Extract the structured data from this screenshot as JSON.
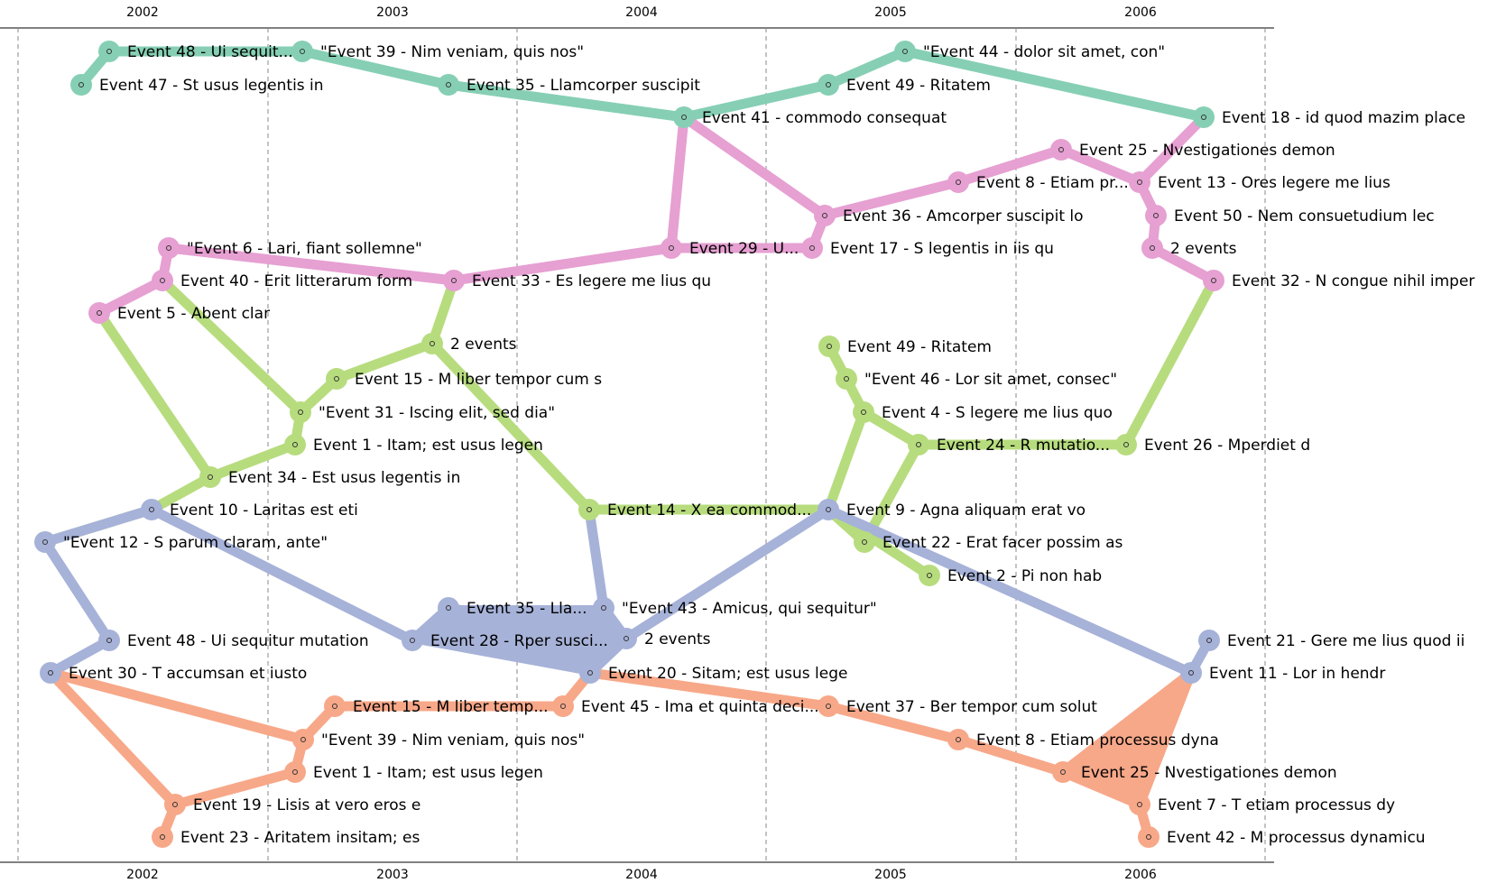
{
  "years": [
    "2002",
    "2003",
    "2004",
    "2005",
    "2006"
  ],
  "colors": {
    "teal": "#86cfb5",
    "pink": "#e6a0d2",
    "green": "#b7dc7e",
    "blue": "#a6b2d8",
    "orange": "#f7a889"
  },
  "events": [
    {
      "id": "t47",
      "label": "Event 47 - St usus legentis in"
    },
    {
      "id": "t48",
      "label": "Event 48 - Ui sequit..."
    },
    {
      "id": "t39",
      "label": "\"Event 39 - Nim veniam, quis nos\""
    },
    {
      "id": "t35",
      "label": "Event 35 - Llamcorper suscipit"
    },
    {
      "id": "t41",
      "label": "Event 41 - commodo consequat"
    },
    {
      "id": "t49",
      "label": "Event 49 - Ritatem"
    },
    {
      "id": "t44",
      "label": "\"Event 44 - dolor sit amet, con\""
    },
    {
      "id": "t18",
      "label": "Event 18 - id quod mazim place"
    },
    {
      "id": "p25",
      "label": "Event 25 - Nvestigationes demon"
    },
    {
      "id": "p8",
      "label": "Event 8 - Etiam pr..."
    },
    {
      "id": "p13",
      "label": "Event 13 - Ores legere me lius"
    },
    {
      "id": "p36",
      "label": "Event 36 - Amcorper suscipit lo"
    },
    {
      "id": "p50",
      "label": "Event 50 - Nem consuetudium lec"
    },
    {
      "id": "p6",
      "label": "\"Event 6 - Lari, fiant sollemne\""
    },
    {
      "id": "p29",
      "label": "Event 29 - U..."
    },
    {
      "id": "p17",
      "label": "Event 17 - S legentis in iis qu"
    },
    {
      "id": "p2e",
      "label": "2 events"
    },
    {
      "id": "p40",
      "label": "Event 40 - Erit litterarum form"
    },
    {
      "id": "p33",
      "label": "Event 33 - Es legere me lius qu"
    },
    {
      "id": "p32",
      "label": "Event 32 - N congue nihil imper"
    },
    {
      "id": "p5",
      "label": "Event 5 - Abent clar"
    },
    {
      "id": "g2e",
      "label": "2 events"
    },
    {
      "id": "g49",
      "label": "Event 49 - Ritatem"
    },
    {
      "id": "g15",
      "label": "Event 15 - M liber tempor cum s"
    },
    {
      "id": "g46",
      "label": "\"Event 46 - Lor sit amet, consec\""
    },
    {
      "id": "g31",
      "label": "\"Event 31 - Iscing elit, sed dia\""
    },
    {
      "id": "g4",
      "label": "Event 4 - S legere me lius quo"
    },
    {
      "id": "g1",
      "label": "Event 1 - Itam; est usus legen"
    },
    {
      "id": "g24",
      "label": "Event 24 - R mutatio..."
    },
    {
      "id": "g26",
      "label": "Event 26 - Mperdiet d"
    },
    {
      "id": "g34",
      "label": "Event 34 - Est usus legentis in"
    },
    {
      "id": "g14",
      "label": "Event 14 - X ea commod..."
    },
    {
      "id": "g22",
      "label": "Event 22 - Erat facer possim as"
    },
    {
      "id": "g2",
      "label": "Event 2 - Pi non hab"
    },
    {
      "id": "b10",
      "label": "Event 10 - Laritas est eti"
    },
    {
      "id": "b9",
      "label": "Event 9 - Agna aliquam erat vo"
    },
    {
      "id": "b12",
      "label": "\"Event 12 - S parum claram, ante\""
    },
    {
      "id": "b35",
      "label": "Event 35 - Lla..."
    },
    {
      "id": "b43",
      "label": "\"Event 43 - Amicus, qui sequitur\""
    },
    {
      "id": "b48",
      "label": "Event 48 - Ui sequitur mutation"
    },
    {
      "id": "b28",
      "label": "Event 28 - Rper susci..."
    },
    {
      "id": "b2e",
      "label": "2 events"
    },
    {
      "id": "b21",
      "label": "Event 21 - Gere me lius quod ii"
    },
    {
      "id": "b30",
      "label": "Event 30 - T accumsan et iusto"
    },
    {
      "id": "b20",
      "label": "Event 20 - Sitam; est usus lege"
    },
    {
      "id": "b11",
      "label": "Event 11 - Lor in hendr"
    },
    {
      "id": "o15",
      "label": "Event 15 - M liber temp..."
    },
    {
      "id": "o45",
      "label": "Event 45 - Ima et quinta deci..."
    },
    {
      "id": "o37",
      "label": "Event 37 - Ber tempor cum solut"
    },
    {
      "id": "o39",
      "label": "\"Event 39 - Nim veniam, quis nos\""
    },
    {
      "id": "o8",
      "label": "Event 8 - Etiam processus dyna"
    },
    {
      "id": "o1",
      "label": "Event 1 - Itam; est usus legen"
    },
    {
      "id": "o25",
      "label": "Event 25 - Nvestigationes demon"
    },
    {
      "id": "o19",
      "label": "Event 19 - Lisis at vero eros e"
    },
    {
      "id": "o7",
      "label": "Event 7 - T etiam processus dy"
    },
    {
      "id": "o23",
      "label": "Event 23 - Aritatem insitam; es"
    },
    {
      "id": "o42",
      "label": "Event 42 - M processus dynamicu"
    }
  ],
  "tracks": [
    {
      "name": "teal",
      "color_key": "teal",
      "path": [
        "t47",
        "t48",
        "t39",
        "t35",
        "t41",
        "t49",
        "t44",
        "t18"
      ]
    },
    {
      "name": "pink",
      "color_key": "pink",
      "path": [
        "t18",
        "p13",
        "p50",
        "p2e",
        "p32"
      ],
      "extra": [
        [
          "p13",
          "p25"
        ],
        [
          "p25",
          "p8"
        ],
        [
          "p8",
          "p36"
        ],
        [
          "p36",
          "t41"
        ],
        [
          "t41",
          "p29"
        ],
        [
          "p36",
          "p17"
        ],
        [
          "p17",
          "p29"
        ],
        [
          "p29",
          "p33"
        ],
        [
          "p33",
          "p6"
        ],
        [
          "p6",
          "p40"
        ],
        [
          "p40",
          "p5"
        ]
      ]
    },
    {
      "name": "green",
      "color_key": "green",
      "path": [
        "p33",
        "g2e",
        "g15",
        "g31",
        "p40"
      ],
      "extra": [
        [
          "p5",
          "g34"
        ],
        [
          "g34",
          "g1"
        ],
        [
          "g1",
          "g31"
        ],
        [
          "g34",
          "b10"
        ],
        [
          "b10",
          "b12"
        ],
        [
          "g2e",
          "g14"
        ],
        [
          "g14",
          "b9"
        ],
        [
          "b9",
          "g4"
        ],
        [
          "g4",
          "g46"
        ],
        [
          "g46",
          "g49"
        ],
        [
          "g4",
          "g24"
        ],
        [
          "g24",
          "g26"
        ],
        [
          "g26",
          "p32"
        ],
        [
          "g24",
          "g22"
        ],
        [
          "g22",
          "b9"
        ],
        [
          "b9",
          "g2"
        ]
      ]
    },
    {
      "name": "blue",
      "color_key": "blue",
      "path": [
        "b12",
        "b48",
        "b30"
      ],
      "extra": [
        [
          "b12",
          "b10"
        ],
        [
          "b10",
          "b28"
        ],
        [
          "b28",
          "b35"
        ],
        [
          "b35",
          "b2e"
        ],
        [
          "b2e",
          "b43"
        ],
        [
          "b43",
          "g14"
        ],
        [
          "b2e",
          "b9"
        ],
        [
          "b9",
          "b11"
        ],
        [
          "b11",
          "b21"
        ],
        [
          "b2e",
          "b20"
        ]
      ]
    },
    {
      "name": "orange",
      "color_key": "orange",
      "path": [
        "b30",
        "o39",
        "o15",
        "o45",
        "b20"
      ],
      "extra": [
        [
          "b30",
          "o19"
        ],
        [
          "o19",
          "o1"
        ],
        [
          "o1",
          "o39"
        ],
        [
          "o19",
          "o23"
        ],
        [
          "b20",
          "o37"
        ],
        [
          "o37",
          "o8"
        ],
        [
          "o8",
          "o25"
        ],
        [
          "o25",
          "b11"
        ],
        [
          "b11",
          "o7"
        ],
        [
          "o7",
          "o42"
        ],
        [
          "o25",
          "o7"
        ]
      ]
    }
  ]
}
